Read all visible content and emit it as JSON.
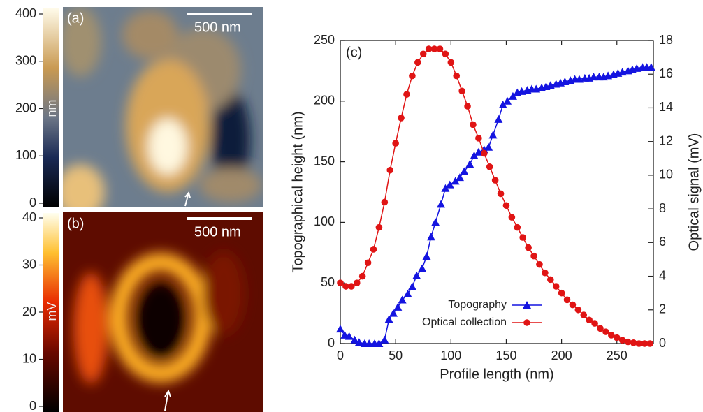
{
  "panels": [
    {
      "label": "(a)",
      "scale_bar": "500 nm",
      "colorbar": {
        "label": "nm",
        "ylim": [
          0,
          400
        ],
        "yticks": [
          0,
          100,
          200,
          300,
          400
        ]
      }
    },
    {
      "label": "(b)",
      "scale_bar": "500 nm",
      "colorbar": {
        "label": "mV",
        "ylim": [
          0,
          40
        ],
        "yticks": [
          0,
          10,
          20,
          30,
          40
        ]
      }
    }
  ],
  "chart_data": {
    "type": "line",
    "label": "(c)",
    "xlabel": "Profile length (nm)",
    "ylabel": "Topographical height (nm)",
    "y2label": "Optical signal (mV)",
    "xlim": [
      0,
      283
    ],
    "ylim": [
      0,
      250
    ],
    "y2lim": [
      0,
      18
    ],
    "xticks": [
      0,
      50,
      100,
      150,
      200,
      250
    ],
    "yticks": [
      0,
      50,
      100,
      150,
      200,
      250
    ],
    "y2ticks": [
      0,
      2,
      4,
      6,
      8,
      10,
      12,
      14,
      16,
      18
    ],
    "legend": "lower-center",
    "series": [
      {
        "name": "Topography",
        "color": "#1414e0",
        "marker": "triangle",
        "axis": "y",
        "x": [
          0,
          4,
          8,
          13,
          17,
          22,
          26,
          31,
          35,
          40,
          44,
          48,
          52,
          56,
          61,
          65,
          69,
          74,
          78,
          82,
          86,
          91,
          95,
          99,
          104,
          108,
          112,
          117,
          121,
          125,
          130,
          134,
          138,
          143,
          147,
          151,
          156,
          160,
          164,
          169,
          173,
          177,
          182,
          186,
          190,
          195,
          199,
          203,
          208,
          212,
          216,
          221,
          225,
          229,
          234,
          238,
          242,
          247,
          251,
          255,
          260,
          264,
          268,
          273,
          277,
          281
        ],
        "values": [
          12,
          7,
          6,
          3,
          1,
          0,
          0,
          0,
          0,
          3,
          20,
          25,
          30,
          36,
          41,
          47,
          56,
          62,
          72,
          88,
          100,
          115,
          128,
          131,
          134,
          137,
          142,
          148,
          155,
          158,
          160,
          162,
          172,
          185,
          197,
          200,
          204,
          207,
          208,
          209,
          210,
          210,
          211,
          212,
          213,
          214,
          215,
          216,
          217,
          218,
          218,
          219,
          219,
          220,
          220,
          220,
          221,
          222,
          223,
          224,
          225,
          226,
          227,
          228,
          228,
          228
        ]
      },
      {
        "name": "Optical collection",
        "color": "#e01414",
        "marker": "circle",
        "axis": "y2",
        "x": [
          0,
          5,
          10,
          15,
          20,
          25,
          30,
          35,
          40,
          45,
          50,
          55,
          60,
          65,
          70,
          75,
          80,
          85,
          90,
          95,
          100,
          105,
          110,
          115,
          120,
          125,
          130,
          135,
          140,
          145,
          150,
          155,
          160,
          165,
          170,
          175,
          180,
          185,
          190,
          195,
          200,
          205,
          210,
          215,
          220,
          225,
          230,
          235,
          240,
          245,
          250,
          255,
          260,
          265,
          270,
          275,
          280
        ],
        "values": [
          3.6,
          3.4,
          3.4,
          3.6,
          4.0,
          4.8,
          5.6,
          6.9,
          8.4,
          10.3,
          11.9,
          13.4,
          14.8,
          15.9,
          16.7,
          17.2,
          17.5,
          17.5,
          17.5,
          17.2,
          16.7,
          15.9,
          15.0,
          14.1,
          13.0,
          12.2,
          11.3,
          10.5,
          9.7,
          8.9,
          8.2,
          7.5,
          6.9,
          6.3,
          5.7,
          5.2,
          4.7,
          4.2,
          3.8,
          3.4,
          3.0,
          2.6,
          2.3,
          2.0,
          1.7,
          1.4,
          1.2,
          0.9,
          0.7,
          0.5,
          0.35,
          0.2,
          0.1,
          0.05,
          0,
          0,
          0
        ]
      }
    ]
  }
}
